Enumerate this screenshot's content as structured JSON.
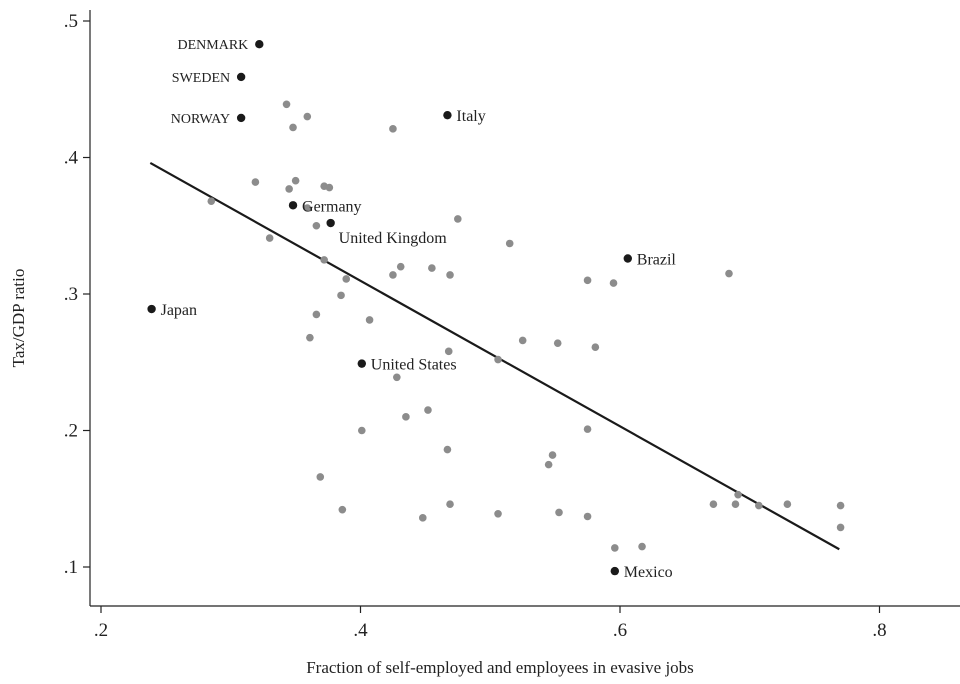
{
  "chart_data": {
    "type": "scatter",
    "title": "",
    "xlabel": "Fraction of self-employed and employees in evasive jobs",
    "ylabel": "Tax/GDP ratio",
    "xlim": [
      0.2,
      0.87
    ],
    "ylim": [
      0.065,
      0.52
    ],
    "x_ticks": [
      0.2,
      0.4,
      0.6,
      0.8
    ],
    "x_tick_labels": [
      ".2",
      ".4",
      ".6",
      ".8"
    ],
    "y_ticks": [
      0.1,
      0.2,
      0.3,
      0.4,
      0.5
    ],
    "y_tick_labels": [
      ".1",
      ".2",
      ".3",
      ".4",
      ".5"
    ],
    "grid": false,
    "colors": {
      "gray_points": "#8c8c8c",
      "labeled_points": "#1a1a1a",
      "fit_line": "#1a1a1a"
    },
    "fit_line": {
      "x": [
        0.238,
        0.769
      ],
      "y": [
        0.396,
        0.113
      ]
    },
    "labeled_points": [
      {
        "label": "DENMARK",
        "x": 0.322,
        "y": 0.483,
        "side": "left"
      },
      {
        "label": "SWEDEN",
        "x": 0.308,
        "y": 0.459,
        "side": "left"
      },
      {
        "label": "NORWAY",
        "x": 0.308,
        "y": 0.429,
        "side": "left"
      },
      {
        "label": "Italy",
        "x": 0.467,
        "y": 0.431,
        "side": "right"
      },
      {
        "label": "Germany",
        "x": 0.348,
        "y": 0.365,
        "side": "right"
      },
      {
        "label": "United Kingdom",
        "x": 0.377,
        "y": 0.352,
        "side": "right-below"
      },
      {
        "label": "Brazil",
        "x": 0.606,
        "y": 0.326,
        "side": "right"
      },
      {
        "label": "Japan",
        "x": 0.239,
        "y": 0.289,
        "side": "right"
      },
      {
        "label": "United States",
        "x": 0.401,
        "y": 0.249,
        "side": "right"
      },
      {
        "label": "Mexico",
        "x": 0.596,
        "y": 0.097,
        "side": "right"
      }
    ],
    "points": [
      {
        "x": 0.343,
        "y": 0.439
      },
      {
        "x": 0.359,
        "y": 0.43
      },
      {
        "x": 0.348,
        "y": 0.422
      },
      {
        "x": 0.425,
        "y": 0.421
      },
      {
        "x": 0.319,
        "y": 0.382
      },
      {
        "x": 0.35,
        "y": 0.383
      },
      {
        "x": 0.345,
        "y": 0.377
      },
      {
        "x": 0.372,
        "y": 0.379
      },
      {
        "x": 0.376,
        "y": 0.378
      },
      {
        "x": 0.285,
        "y": 0.368
      },
      {
        "x": 0.359,
        "y": 0.363
      },
      {
        "x": 0.475,
        "y": 0.355
      },
      {
        "x": 0.366,
        "y": 0.35
      },
      {
        "x": 0.33,
        "y": 0.341
      },
      {
        "x": 0.515,
        "y": 0.337
      },
      {
        "x": 0.372,
        "y": 0.325
      },
      {
        "x": 0.431,
        "y": 0.32
      },
      {
        "x": 0.455,
        "y": 0.319
      },
      {
        "x": 0.425,
        "y": 0.314
      },
      {
        "x": 0.469,
        "y": 0.314
      },
      {
        "x": 0.575,
        "y": 0.31
      },
      {
        "x": 0.595,
        "y": 0.308
      },
      {
        "x": 0.684,
        "y": 0.315
      },
      {
        "x": 0.389,
        "y": 0.311
      },
      {
        "x": 0.385,
        "y": 0.299
      },
      {
        "x": 0.366,
        "y": 0.285
      },
      {
        "x": 0.407,
        "y": 0.281
      },
      {
        "x": 0.361,
        "y": 0.268
      },
      {
        "x": 0.525,
        "y": 0.266
      },
      {
        "x": 0.552,
        "y": 0.264
      },
      {
        "x": 0.581,
        "y": 0.261
      },
      {
        "x": 0.468,
        "y": 0.258
      },
      {
        "x": 0.506,
        "y": 0.252
      },
      {
        "x": 0.428,
        "y": 0.239
      },
      {
        "x": 0.452,
        "y": 0.215
      },
      {
        "x": 0.435,
        "y": 0.21
      },
      {
        "x": 0.401,
        "y": 0.2
      },
      {
        "x": 0.575,
        "y": 0.201
      },
      {
        "x": 0.467,
        "y": 0.186
      },
      {
        "x": 0.548,
        "y": 0.182
      },
      {
        "x": 0.545,
        "y": 0.175
      },
      {
        "x": 0.369,
        "y": 0.166
      },
      {
        "x": 0.386,
        "y": 0.142
      },
      {
        "x": 0.469,
        "y": 0.146
      },
      {
        "x": 0.448,
        "y": 0.136
      },
      {
        "x": 0.506,
        "y": 0.139
      },
      {
        "x": 0.553,
        "y": 0.14
      },
      {
        "x": 0.575,
        "y": 0.137
      },
      {
        "x": 0.691,
        "y": 0.153
      },
      {
        "x": 0.672,
        "y": 0.146
      },
      {
        "x": 0.689,
        "y": 0.146
      },
      {
        "x": 0.707,
        "y": 0.145
      },
      {
        "x": 0.729,
        "y": 0.146
      },
      {
        "x": 0.77,
        "y": 0.145
      },
      {
        "x": 0.77,
        "y": 0.129
      },
      {
        "x": 0.596,
        "y": 0.114
      },
      {
        "x": 0.617,
        "y": 0.115
      }
    ]
  }
}
